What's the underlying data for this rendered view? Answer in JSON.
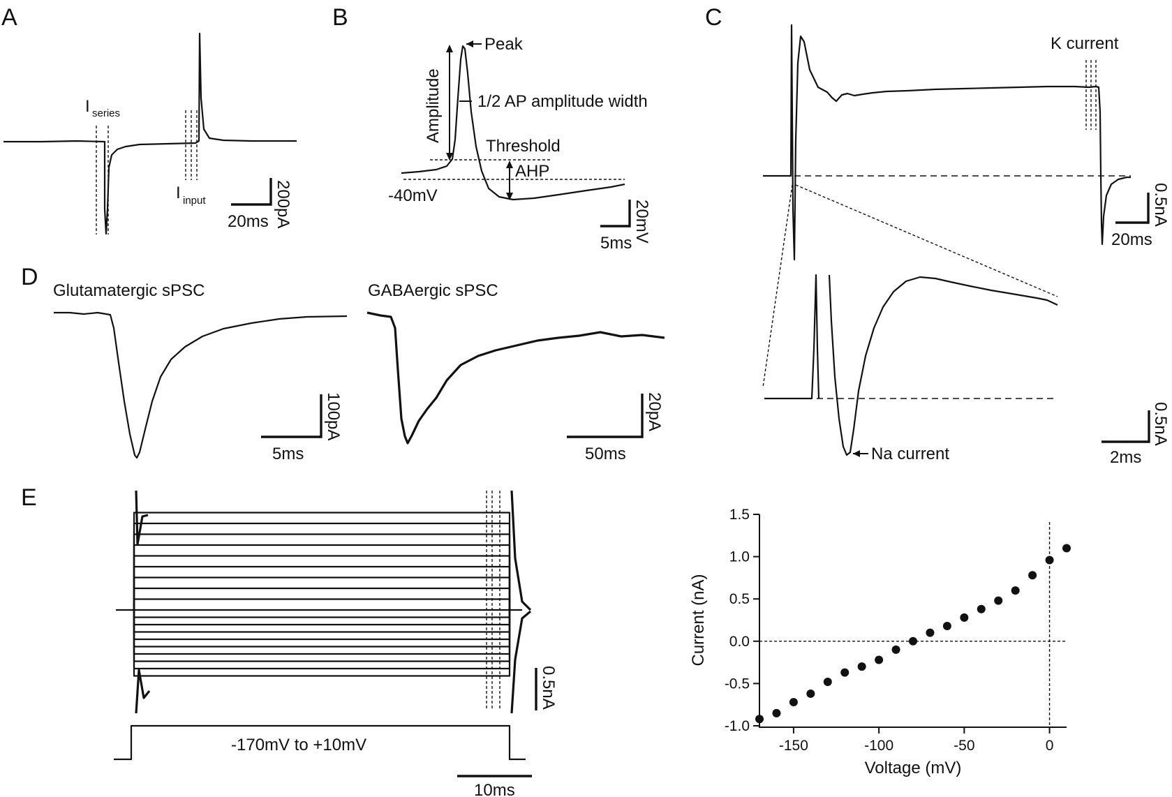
{
  "panels": {
    "a": {
      "letter": "A",
      "i_series": "I",
      "i_series_sub": "series",
      "i_input": "I",
      "i_input_sub": "input",
      "scale_y": "200pA",
      "scale_x": "20ms"
    },
    "b": {
      "letter": "B",
      "peak": "Peak",
      "amplitude": "Amplitude",
      "half_width": "1/2 AP amplitude width",
      "threshold": "Threshold",
      "ahp": "AHP",
      "baseline": "-40mV",
      "scale_y": "20mV",
      "scale_x": "5ms"
    },
    "c": {
      "letter": "C",
      "k_current": "K current",
      "na_current": "Na current",
      "scale_y_top": "0.5nA",
      "scale_x_top": "20ms",
      "scale_y_bottom": "0.5nA",
      "scale_x_bottom": "2ms"
    },
    "d": {
      "letter": "D",
      "glut_title": "Glutamatergic sPSC",
      "gaba_title": "GABAergic sPSC",
      "glut_scale_y": "100pA",
      "glut_scale_x": "5ms",
      "gaba_scale_y": "20pA",
      "gaba_scale_x": "50ms"
    },
    "e": {
      "letter": "E",
      "protocol": "-170mV to +10mV",
      "scale_y": "0.5nA",
      "scale_x": "10ms"
    }
  },
  "chart_data": {
    "type": "scatter",
    "title": "",
    "xlabel": "Voltage (mV)",
    "ylabel": "Current (nA)",
    "xlim": [
      -170,
      10
    ],
    "ylim": [
      -1.0,
      1.5
    ],
    "xticks": [
      -150,
      -100,
      -50,
      0
    ],
    "xtick_labels": [
      "-150",
      "-100",
      "-50",
      "0"
    ],
    "yticks": [
      1.5,
      1.0,
      0.5,
      0.0,
      -0.5,
      -1.0
    ],
    "ytick_labels": [
      "1.5",
      "1.0",
      "0.5",
      "0.0",
      "-0.5",
      "-1.0"
    ],
    "grid": false,
    "reference_lines": {
      "y": 0.0,
      "x": 0
    },
    "x": [
      -170,
      -160,
      -150,
      -140,
      -130,
      -120,
      -110,
      -100,
      -90,
      -80,
      -70,
      -60,
      -50,
      -40,
      -30,
      -20,
      -10,
      0,
      10
    ],
    "y": [
      -0.92,
      -0.85,
      -0.72,
      -0.62,
      -0.48,
      -0.37,
      -0.3,
      -0.22,
      -0.1,
      0.0,
      0.1,
      0.18,
      0.28,
      0.38,
      0.48,
      0.6,
      0.78,
      0.96,
      1.1
    ]
  }
}
